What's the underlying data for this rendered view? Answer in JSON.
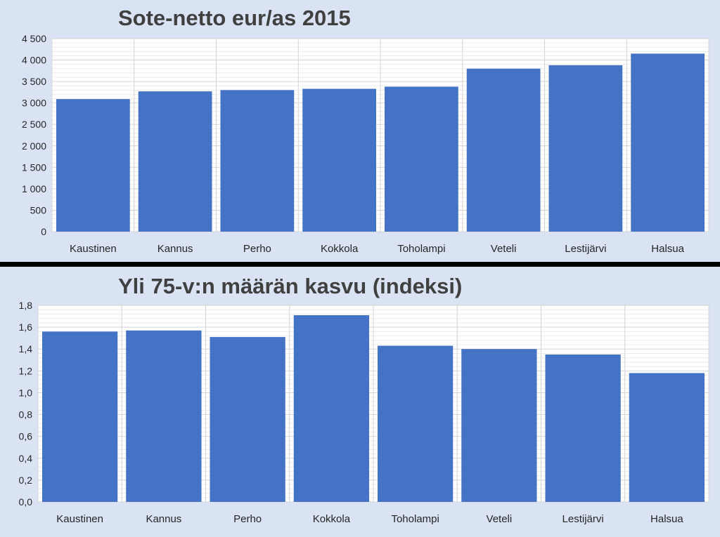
{
  "chart_data": [
    {
      "type": "bar",
      "title": "Sote-netto eur/as 2015",
      "categories": [
        "Kaustinen",
        "Kannus",
        "Perho",
        "Kokkola",
        "Toholampi",
        "Veteli",
        "Lestijärvi",
        "Halsua"
      ],
      "values": [
        3090,
        3270,
        3300,
        3330,
        3380,
        3800,
        3880,
        4150
      ],
      "ylim": [
        0,
        4500
      ],
      "yticks": [
        0,
        500,
        1000,
        1500,
        2000,
        2500,
        3000,
        3500,
        4000,
        4500
      ],
      "ytick_labels": [
        "0",
        "500",
        "1 000",
        "1 500",
        "2 000",
        "2 500",
        "3 000",
        "3 500",
        "4 000",
        "4 500"
      ],
      "grid": true,
      "bar_color": "#4472c4"
    },
    {
      "type": "bar",
      "title": "Yli 75-v:n määrän kasvu (indeksi)",
      "categories": [
        "Kaustinen",
        "Kannus",
        "Perho",
        "Kokkola",
        "Toholampi",
        "Veteli",
        "Lestijärvi",
        "Halsua"
      ],
      "values": [
        1.56,
        1.57,
        1.51,
        1.71,
        1.43,
        1.4,
        1.35,
        1.18
      ],
      "ylim": [
        0,
        1.8
      ],
      "yticks": [
        0,
        0.2,
        0.4,
        0.6,
        0.8,
        1.0,
        1.2,
        1.4,
        1.6,
        1.8
      ],
      "ytick_labels": [
        "0,0",
        "0,2",
        "0,4",
        "0,6",
        "0,8",
        "1,0",
        "1,2",
        "1,4",
        "1,6",
        "1,8"
      ],
      "grid": true,
      "bar_color": "#4472c4"
    }
  ]
}
